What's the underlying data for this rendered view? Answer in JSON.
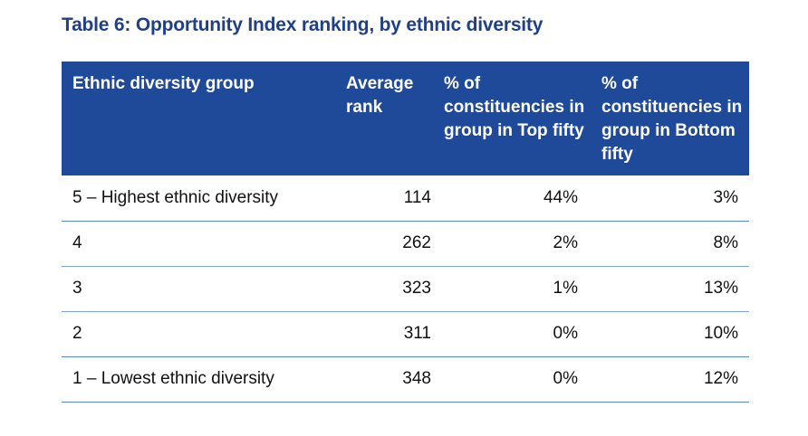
{
  "title": "Table 6: Opportunity Index ranking, by ethnic diversity",
  "table": {
    "headers": {
      "group": "Ethnic diversity group",
      "rank": "Average rank",
      "top": "% of constituencies in group in Top fifty",
      "bottom": "% of constituencies in group in Bottom fifty"
    },
    "rows": [
      {
        "group": "5 – Highest ethnic diversity",
        "rank": "114",
        "top": "44%",
        "bottom": "3%"
      },
      {
        "group": "4",
        "rank": "262",
        "top": "2%",
        "bottom": "8%"
      },
      {
        "group": "3",
        "rank": "323",
        "top": "1%",
        "bottom": "13%"
      },
      {
        "group": "2",
        "rank": "311",
        "top": "0%",
        "bottom": "10%"
      },
      {
        "group": "1 – Lowest ethnic diversity",
        "rank": "348",
        "top": "0%",
        "bottom": "12%"
      }
    ]
  },
  "colors": {
    "title": "#1f3f86",
    "header_bg": "#1f4a99",
    "header_text": "#ffffff",
    "row_rule": "#5a86c4"
  }
}
